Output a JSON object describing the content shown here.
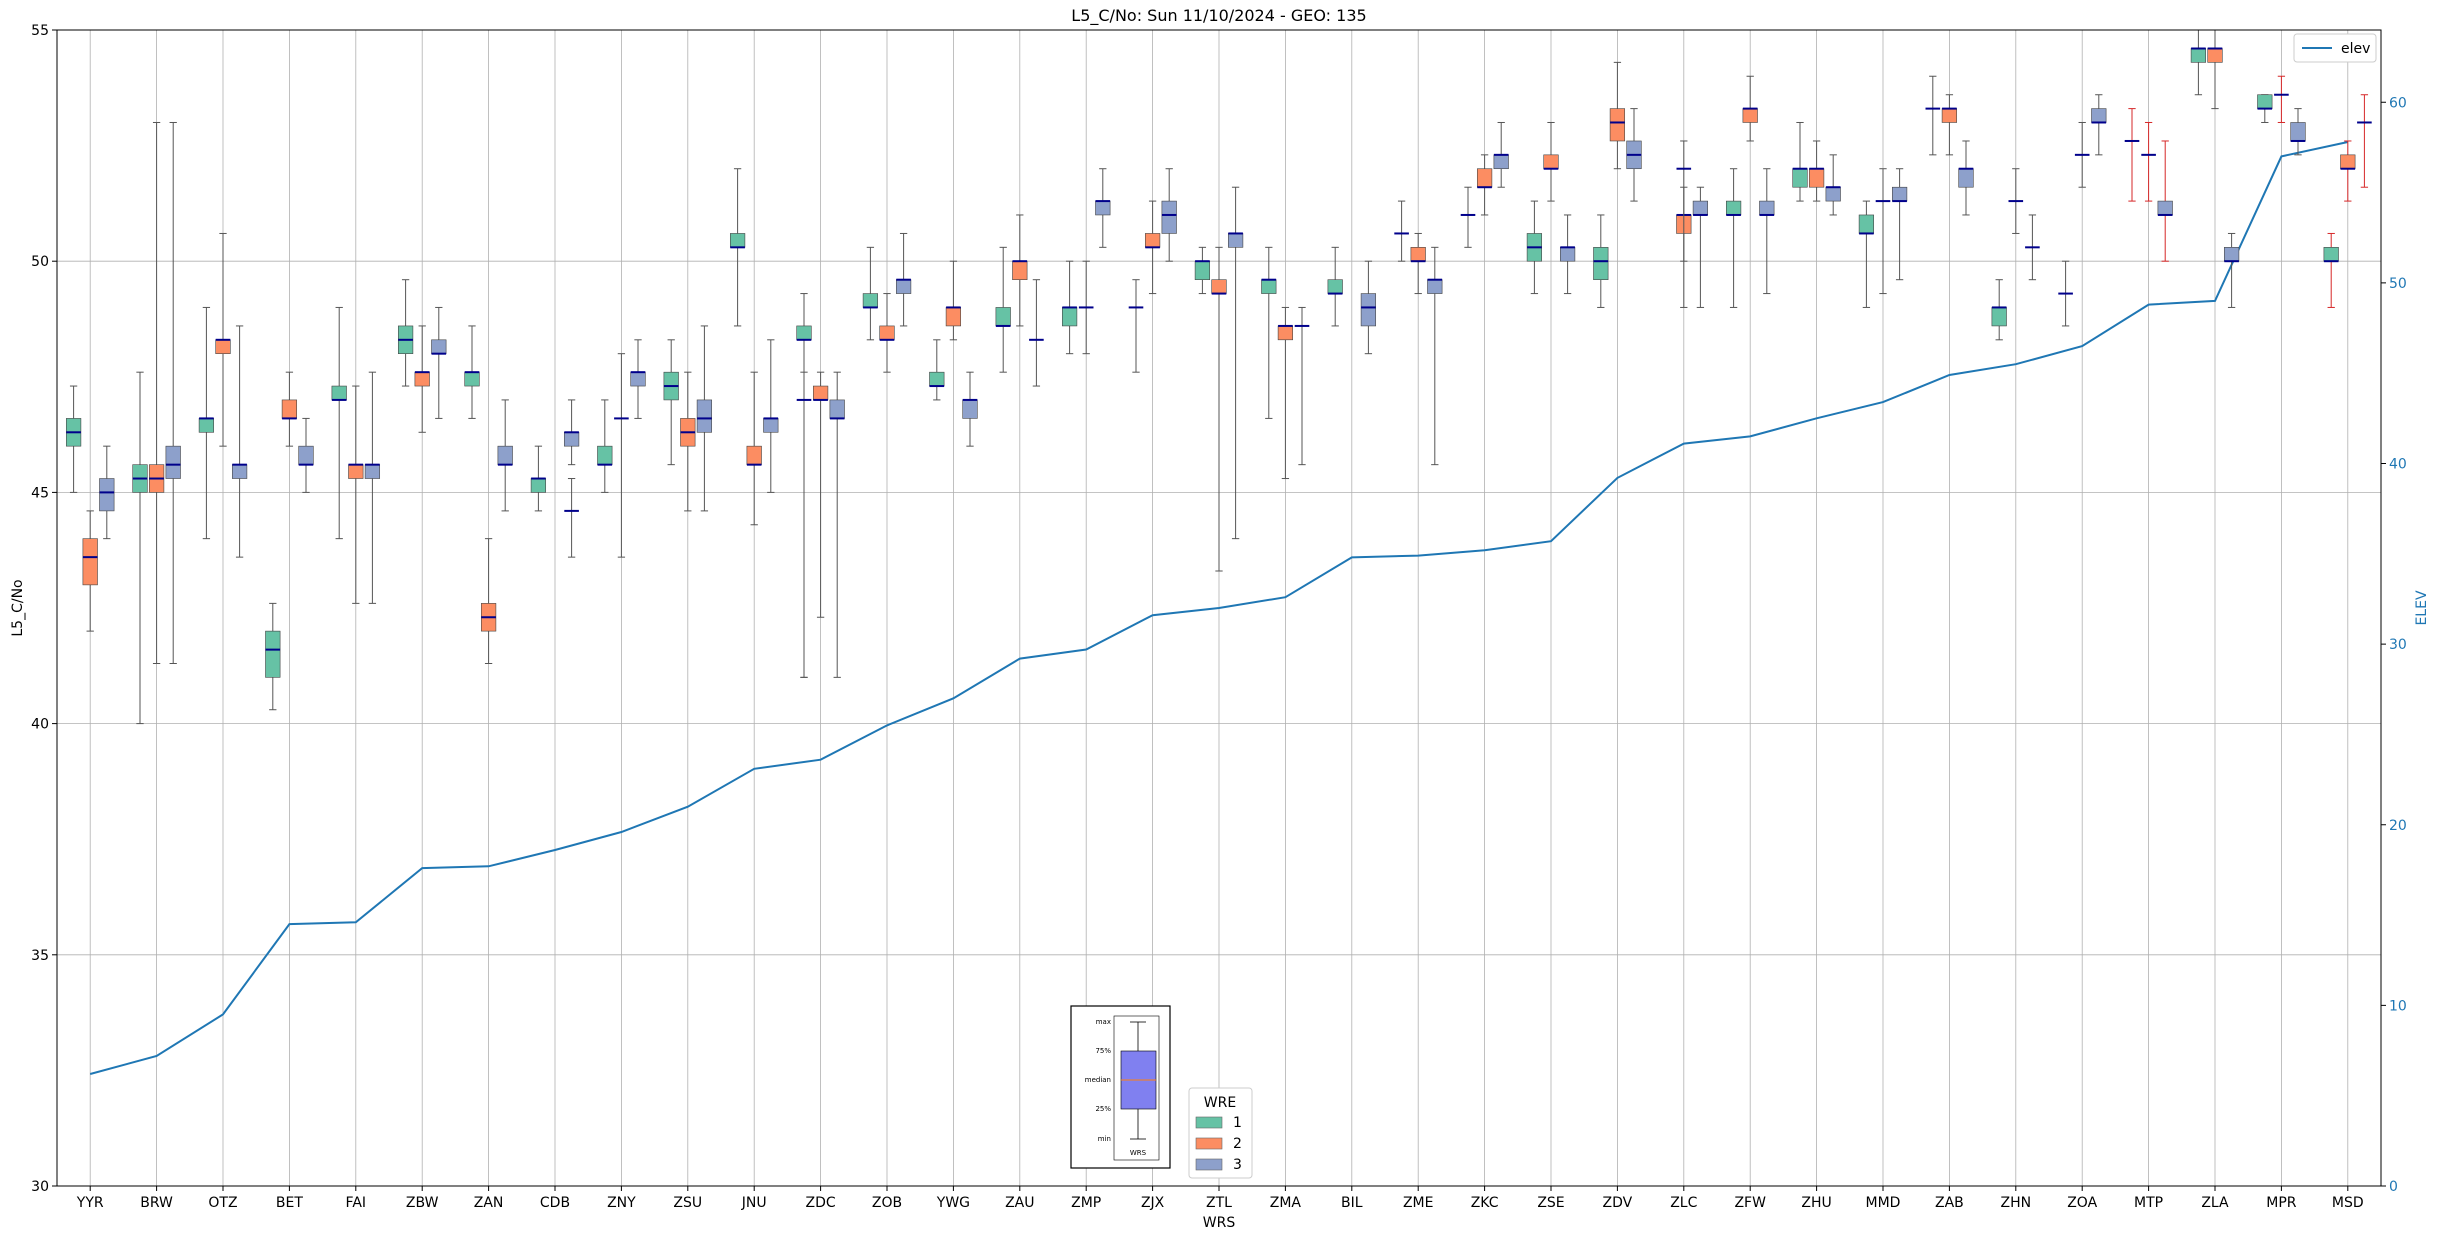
{
  "chart_data": {
    "type": "box",
    "title": "L5_C/No: Sun 11/10/2024 - GEO: 135",
    "xlabel": "WRS",
    "ylabel": "L5_C/No",
    "ylabel_right": "ELEV",
    "ylim": [
      30,
      55
    ],
    "ylim_right": [
      0,
      64
    ],
    "yticks": [
      30,
      35,
      40,
      45,
      50,
      55
    ],
    "yticks_right": [
      0,
      10,
      20,
      30,
      40,
      50,
      60
    ],
    "grid": true,
    "categories": [
      "YYR",
      "BRW",
      "OTZ",
      "BET",
      "FAI",
      "ZBW",
      "ZAN",
      "CDB",
      "ZNY",
      "ZSU",
      "JNU",
      "ZDC",
      "ZOB",
      "YWG",
      "ZAU",
      "ZMP",
      "ZJX",
      "ZTL",
      "ZMA",
      "BIL",
      "ZME",
      "ZKC",
      "ZSE",
      "ZDV",
      "ZLC",
      "ZFW",
      "ZHU",
      "MMD",
      "ZAB",
      "ZHN",
      "ZOA",
      "MTP",
      "ZLA",
      "MPR",
      "MSD"
    ],
    "wre_legend": {
      "title": "WRE",
      "entries": [
        {
          "label": "1",
          "color": "#66c2a5"
        },
        {
          "label": "2",
          "color": "#fc8d62"
        },
        {
          "label": "3",
          "color": "#8da0cb"
        }
      ]
    },
    "line_legend": {
      "label": "elev",
      "color": "#1f77b4"
    },
    "median_color": "#00008b",
    "whisker_color": "#555555",
    "whisker_alt_color": "#d62728",
    "key_box": {
      "labels": [
        "max",
        "75%",
        "median",
        "25%",
        "min"
      ],
      "xlabel": "WRS",
      "fill": "#8080f0"
    },
    "elev": [
      6.2,
      7.2,
      9.5,
      14.5,
      14.6,
      17.6,
      17.7,
      18.6,
      19.6,
      21.0,
      23.1,
      23.6,
      25.5,
      27.0,
      29.2,
      29.7,
      31.6,
      32.0,
      32.6,
      34.8,
      34.9,
      35.2,
      35.7,
      39.2,
      41.1,
      41.5,
      42.5,
      43.4,
      44.9,
      45.5,
      46.5,
      48.8,
      49.0,
      57.0,
      57.8
    ],
    "series": [
      {
        "wre": 1,
        "boxes": [
          {
            "x": 0,
            "min": 45.0,
            "q1": 46.0,
            "med": 46.3,
            "q3": 46.6,
            "max": 47.3
          },
          {
            "x": 1,
            "min": 40.0,
            "q1": 45.0,
            "med": 45.3,
            "q3": 45.6,
            "max": 47.6
          },
          {
            "x": 2,
            "min": 44.0,
            "q1": 46.3,
            "med": 46.6,
            "q3": 46.6,
            "max": 49.0
          },
          {
            "x": 3,
            "min": 40.3,
            "q1": 41.0,
            "med": 41.6,
            "q3": 42.0,
            "max": 42.6
          },
          {
            "x": 4,
            "min": 44.0,
            "q1": 47.0,
            "med": 47.0,
            "q3": 47.3,
            "max": 49.0
          },
          {
            "x": 5,
            "min": 47.3,
            "q1": 48.0,
            "med": 48.3,
            "q3": 48.6,
            "max": 49.6
          },
          {
            "x": 6,
            "min": 46.6,
            "q1": 47.3,
            "med": 47.6,
            "q3": 47.6,
            "max": 48.6
          },
          {
            "x": 7,
            "min": 44.6,
            "q1": 45.0,
            "med": 45.3,
            "q3": 45.3,
            "max": 46.0
          },
          {
            "x": 8,
            "min": 45.0,
            "q1": 45.6,
            "med": 45.6,
            "q3": 46.0,
            "max": 47.0
          },
          {
            "x": 9,
            "min": 45.6,
            "q1": 47.0,
            "med": 47.3,
            "q3": 47.6,
            "max": 48.3
          },
          {
            "x": 10,
            "min": 48.6,
            "q1": 50.3,
            "med": 50.3,
            "q3": 50.6,
            "max": 52.0
          },
          {
            "x": 11,
            "min": 41.0,
            "q1": 48.3,
            "med": 48.3,
            "q3": 48.6,
            "max": 49.3
          },
          {
            "x": 12,
            "min": 48.3,
            "q1": 49.0,
            "med": 49.0,
            "q3": 49.3,
            "max": 50.3
          },
          {
            "x": 13,
            "min": 47.0,
            "q1": 47.3,
            "med": 47.3,
            "q3": 47.6,
            "max": 48.3
          },
          {
            "x": 14,
            "min": 47.6,
            "q1": 48.6,
            "med": 48.6,
            "q3": 49.0,
            "max": 50.3
          },
          {
            "x": 15,
            "min": 48.0,
            "q1": 48.6,
            "med": 49.0,
            "q3": 49.0,
            "max": 50.0
          },
          {
            "x": 17,
            "min": 49.3,
            "q1": 49.6,
            "med": 50.0,
            "q3": 50.0,
            "max": 50.3
          },
          {
            "x": 18,
            "min": 46.6,
            "q1": 49.3,
            "med": 49.6,
            "q3": 49.6,
            "max": 50.3
          },
          {
            "x": 19,
            "min": 48.6,
            "q1": 49.3,
            "med": 49.3,
            "q3": 49.6,
            "max": 50.3
          },
          {
            "x": 22,
            "min": 49.3,
            "q1": 50.0,
            "med": 50.3,
            "q3": 50.6,
            "max": 51.3
          },
          {
            "x": 23,
            "min": 49.0,
            "q1": 49.6,
            "med": 50.0,
            "q3": 50.3,
            "max": 51.0
          },
          {
            "x": 25,
            "min": 49.0,
            "q1": 51.0,
            "med": 51.0,
            "q3": 51.3,
            "max": 52.0
          },
          {
            "x": 26,
            "min": 51.3,
            "q1": 51.6,
            "med": 52.0,
            "q3": 52.0,
            "max": 53.0
          },
          {
            "x": 27,
            "min": 49.0,
            "q1": 50.6,
            "med": 50.6,
            "q3": 51.0,
            "max": 51.3
          },
          {
            "x": 29,
            "min": 48.3,
            "q1": 48.6,
            "med": 49.0,
            "q3": 49.0,
            "max": 49.6
          },
          {
            "x": 32,
            "min": 53.6,
            "q1": 54.3,
            "med": 54.6,
            "q3": 54.6,
            "max": 55.0
          },
          {
            "x": 33,
            "min": 53.0,
            "q1": 53.3,
            "med": 53.3,
            "q3": 53.6,
            "max": 53.6
          },
          {
            "x": 34,
            "min": 49.0,
            "q1": 50.0,
            "med": 50.0,
            "q3": 50.3,
            "max": 50.6,
            "whisker": "alt"
          }
        ]
      },
      {
        "wre": 2,
        "boxes": [
          {
            "x": 0,
            "min": 42.0,
            "q1": 43.0,
            "med": 43.6,
            "q3": 44.0,
            "max": 44.6
          },
          {
            "x": 1,
            "min": 41.3,
            "q1": 45.0,
            "med": 45.3,
            "q3": 45.6,
            "max": 53.0
          },
          {
            "x": 2,
            "min": 46.0,
            "q1": 48.0,
            "med": 48.3,
            "q3": 48.3,
            "max": 50.6
          },
          {
            "x": 3,
            "min": 46.0,
            "q1": 46.6,
            "med": 46.6,
            "q3": 47.0,
            "max": 47.6
          },
          {
            "x": 4,
            "min": 42.6,
            "q1": 45.3,
            "med": 45.6,
            "q3": 45.6,
            "max": 47.3
          },
          {
            "x": 5,
            "min": 46.3,
            "q1": 47.3,
            "med": 47.6,
            "q3": 47.6,
            "max": 48.6
          },
          {
            "x": 6,
            "min": 41.3,
            "q1": 42.0,
            "med": 42.3,
            "q3": 42.6,
            "max": 44.0
          },
          {
            "x": 9,
            "min": 44.6,
            "q1": 46.0,
            "med": 46.3,
            "q3": 46.6,
            "max": 47.6
          },
          {
            "x": 10,
            "min": 44.3,
            "q1": 45.6,
            "med": 45.6,
            "q3": 46.0,
            "max": 47.6
          },
          {
            "x": 11,
            "min": 42.3,
            "q1": 47.0,
            "med": 47.0,
            "q3": 47.3,
            "max": 47.6
          },
          {
            "x": 12,
            "min": 47.6,
            "q1": 48.3,
            "med": 48.3,
            "q3": 48.6,
            "max": 49.3
          },
          {
            "x": 13,
            "min": 48.3,
            "q1": 48.6,
            "med": 49.0,
            "q3": 49.0,
            "max": 50.0
          },
          {
            "x": 14,
            "min": 48.6,
            "q1": 49.6,
            "med": 50.0,
            "q3": 50.0,
            "max": 51.0
          },
          {
            "x": 16,
            "min": 49.3,
            "q1": 50.3,
            "med": 50.3,
            "q3": 50.6,
            "max": 51.3
          },
          {
            "x": 17,
            "min": 43.3,
            "q1": 49.3,
            "med": 49.3,
            "q3": 49.6,
            "max": 50.3
          },
          {
            "x": 18,
            "min": 45.3,
            "q1": 48.3,
            "med": 48.6,
            "q3": 48.6,
            "max": 49.0
          },
          {
            "x": 20,
            "min": 49.3,
            "q1": 50.0,
            "med": 50.0,
            "q3": 50.3,
            "max": 50.6
          },
          {
            "x": 21,
            "min": 51.0,
            "q1": 51.6,
            "med": 51.6,
            "q3": 52.0,
            "max": 52.3
          },
          {
            "x": 22,
            "min": 51.3,
            "q1": 52.0,
            "med": 52.0,
            "q3": 52.3,
            "max": 53.0
          },
          {
            "x": 23,
            "min": 52.0,
            "q1": 52.6,
            "med": 53.0,
            "q3": 53.3,
            "max": 54.3
          },
          {
            "x": 24,
            "min": 50.0,
            "q1": 50.6,
            "med": 51.0,
            "q3": 51.0,
            "max": 51.6
          },
          {
            "x": 25,
            "min": 52.6,
            "q1": 53.0,
            "med": 53.3,
            "q3": 53.3,
            "max": 54.0
          },
          {
            "x": 26,
            "min": 51.3,
            "q1": 51.6,
            "med": 52.0,
            "q3": 52.0,
            "max": 52.6
          },
          {
            "x": 28,
            "min": 52.3,
            "q1": 53.0,
            "med": 53.3,
            "q3": 53.3,
            "max": 53.6
          },
          {
            "x": 32,
            "min": 53.3,
            "q1": 54.3,
            "med": 54.6,
            "q3": 54.6,
            "max": 55.0
          },
          {
            "x": 34,
            "min": 51.3,
            "q1": 52.0,
            "med": 52.0,
            "q3": 52.3,
            "max": 52.6,
            "whisker": "alt"
          }
        ]
      },
      {
        "wre": 3,
        "boxes": [
          {
            "x": 0,
            "min": 44.0,
            "q1": 44.6,
            "med": 45.0,
            "q3": 45.3,
            "max": 46.0
          },
          {
            "x": 1,
            "min": 41.3,
            "q1": 45.3,
            "med": 45.6,
            "q3": 46.0,
            "max": 53.0
          },
          {
            "x": 2,
            "min": 43.6,
            "q1": 45.3,
            "med": 45.6,
            "q3": 45.6,
            "max": 48.6
          },
          {
            "x": 3,
            "min": 45.0,
            "q1": 45.6,
            "med": 45.6,
            "q3": 46.0,
            "max": 46.6
          },
          {
            "x": 4,
            "min": 42.6,
            "q1": 45.3,
            "med": 45.6,
            "q3": 45.6,
            "max": 47.6
          },
          {
            "x": 5,
            "min": 46.6,
            "q1": 48.0,
            "med": 48.0,
            "q3": 48.3,
            "max": 49.0
          },
          {
            "x": 6,
            "min": 44.6,
            "q1": 45.6,
            "med": 45.6,
            "q3": 46.0,
            "max": 47.0
          },
          {
            "x": 7,
            "min": 45.6,
            "q1": 46.0,
            "med": 46.3,
            "q3": 46.3,
            "max": 47.0
          },
          {
            "x": 8,
            "min": 46.6,
            "q1": 47.3,
            "med": 47.6,
            "q3": 47.6,
            "max": 48.3
          },
          {
            "x": 9,
            "min": 44.6,
            "q1": 46.3,
            "med": 46.6,
            "q3": 47.0,
            "max": 48.6
          },
          {
            "x": 10,
            "min": 45.0,
            "q1": 46.3,
            "med": 46.6,
            "q3": 46.6,
            "max": 48.3
          },
          {
            "x": 11,
            "min": 41.0,
            "q1": 46.6,
            "med": 46.6,
            "q3": 47.0,
            "max": 47.6
          },
          {
            "x": 12,
            "min": 48.6,
            "q1": 49.3,
            "med": 49.6,
            "q3": 49.6,
            "max": 50.6
          },
          {
            "x": 13,
            "min": 46.0,
            "q1": 46.6,
            "med": 47.0,
            "q3": 47.0,
            "max": 47.6
          },
          {
            "x": 15,
            "min": 50.3,
            "q1": 51.0,
            "med": 51.3,
            "q3": 51.3,
            "max": 52.0
          },
          {
            "x": 16,
            "min": 50.0,
            "q1": 50.6,
            "med": 51.0,
            "q3": 51.3,
            "max": 52.0
          },
          {
            "x": 17,
            "min": 44.0,
            "q1": 50.3,
            "med": 50.6,
            "q3": 50.6,
            "max": 51.6
          },
          {
            "x": 19,
            "min": 48.0,
            "q1": 48.6,
            "med": 49.0,
            "q3": 49.3,
            "max": 50.0
          },
          {
            "x": 20,
            "min": 45.6,
            "q1": 49.3,
            "med": 49.6,
            "q3": 49.6,
            "max": 50.3
          },
          {
            "x": 21,
            "min": 51.6,
            "q1": 52.0,
            "med": 52.3,
            "q3": 52.3,
            "max": 53.0
          },
          {
            "x": 22,
            "min": 49.3,
            "q1": 50.0,
            "med": 50.3,
            "q3": 50.3,
            "max": 51.0
          },
          {
            "x": 23,
            "min": 51.3,
            "q1": 52.0,
            "med": 52.3,
            "q3": 52.6,
            "max": 53.3
          },
          {
            "x": 24,
            "min": 49.0,
            "q1": 51.0,
            "med": 51.0,
            "q3": 51.3,
            "max": 51.6
          },
          {
            "x": 25,
            "min": 49.3,
            "q1": 51.0,
            "med": 51.0,
            "q3": 51.3,
            "max": 52.0
          },
          {
            "x": 26,
            "min": 51.0,
            "q1": 51.3,
            "med": 51.6,
            "q3": 51.6,
            "max": 52.3
          },
          {
            "x": 27,
            "min": 49.6,
            "q1": 51.3,
            "med": 51.3,
            "q3": 51.6,
            "max": 52.0
          },
          {
            "x": 28,
            "min": 51.0,
            "q1": 51.6,
            "med": 52.0,
            "q3": 52.0,
            "max": 52.6
          },
          {
            "x": 30,
            "min": 52.3,
            "q1": 53.0,
            "med": 53.0,
            "q3": 53.3,
            "max": 53.6
          },
          {
            "x": 31,
            "min": 50.0,
            "q1": 51.0,
            "med": 51.0,
            "q3": 51.3,
            "max": 52.6,
            "whisker": "alt"
          },
          {
            "x": 32,
            "min": 49.0,
            "q1": 50.0,
            "med": 50.0,
            "q3": 50.3,
            "max": 50.6
          },
          {
            "x": 33,
            "min": 52.3,
            "q1": 52.6,
            "med": 52.6,
            "q3": 53.0,
            "max": 53.3
          }
        ]
      }
    ],
    "single_points": [
      {
        "x": 7,
        "wre": 3,
        "value": 44.6,
        "min": 43.6,
        "max": 45.3
      },
      {
        "x": 8,
        "wre": 2,
        "value": 46.6,
        "min": 43.6,
        "max": 48.0
      },
      {
        "x": 11,
        "wre": 1,
        "value": 47.0,
        "min": 41.0,
        "max": 47.6
      },
      {
        "x": 14,
        "wre": 3,
        "value": 48.3,
        "min": 47.3,
        "max": 49.6
      },
      {
        "x": 15,
        "wre": 2,
        "value": 49.0,
        "min": 48.0,
        "max": 50.0
      },
      {
        "x": 16,
        "wre": 1,
        "value": 49.0,
        "min": 47.6,
        "max": 49.6
      },
      {
        "x": 18,
        "wre": 3,
        "value": 48.6,
        "min": 45.6,
        "max": 49.0
      },
      {
        "x": 20,
        "wre": 1,
        "value": 50.6,
        "min": 50.0,
        "max": 51.3
      },
      {
        "x": 21,
        "wre": 1,
        "value": 51.0,
        "min": 50.3,
        "max": 51.6
      },
      {
        "x": 24,
        "wre": 2,
        "value": 52.0,
        "min": 49.0,
        "max": 52.6
      },
      {
        "x": 27,
        "wre": 2,
        "value": 51.3,
        "min": 49.3,
        "max": 52.0
      },
      {
        "x": 28,
        "wre": 1,
        "value": 53.3,
        "min": 52.3,
        "max": 54.0
      },
      {
        "x": 29,
        "wre": 2,
        "value": 51.3,
        "min": 50.6,
        "max": 52.0
      },
      {
        "x": 29,
        "wre": 3,
        "value": 50.3,
        "min": 49.6,
        "max": 51.0
      },
      {
        "x": 30,
        "wre": 1,
        "value": 49.3,
        "min": 48.6,
        "max": 50.0
      },
      {
        "x": 30,
        "wre": 2,
        "value": 52.3,
        "min": 51.6,
        "max": 53.0
      },
      {
        "x": 31,
        "wre": 1,
        "value": 52.6,
        "min": 51.3,
        "max": 53.3,
        "whisker": "alt"
      },
      {
        "x": 31,
        "wre": 2,
        "value": 52.3,
        "min": 51.3,
        "max": 53.0,
        "whisker": "alt"
      },
      {
        "x": 33,
        "wre": 2,
        "value": 53.6,
        "min": 53.0,
        "max": 54.0,
        "whisker": "alt"
      },
      {
        "x": 34,
        "wre": 3,
        "value": 53.0,
        "min": 51.6,
        "max": 53.6,
        "whisker": "alt"
      }
    ]
  }
}
